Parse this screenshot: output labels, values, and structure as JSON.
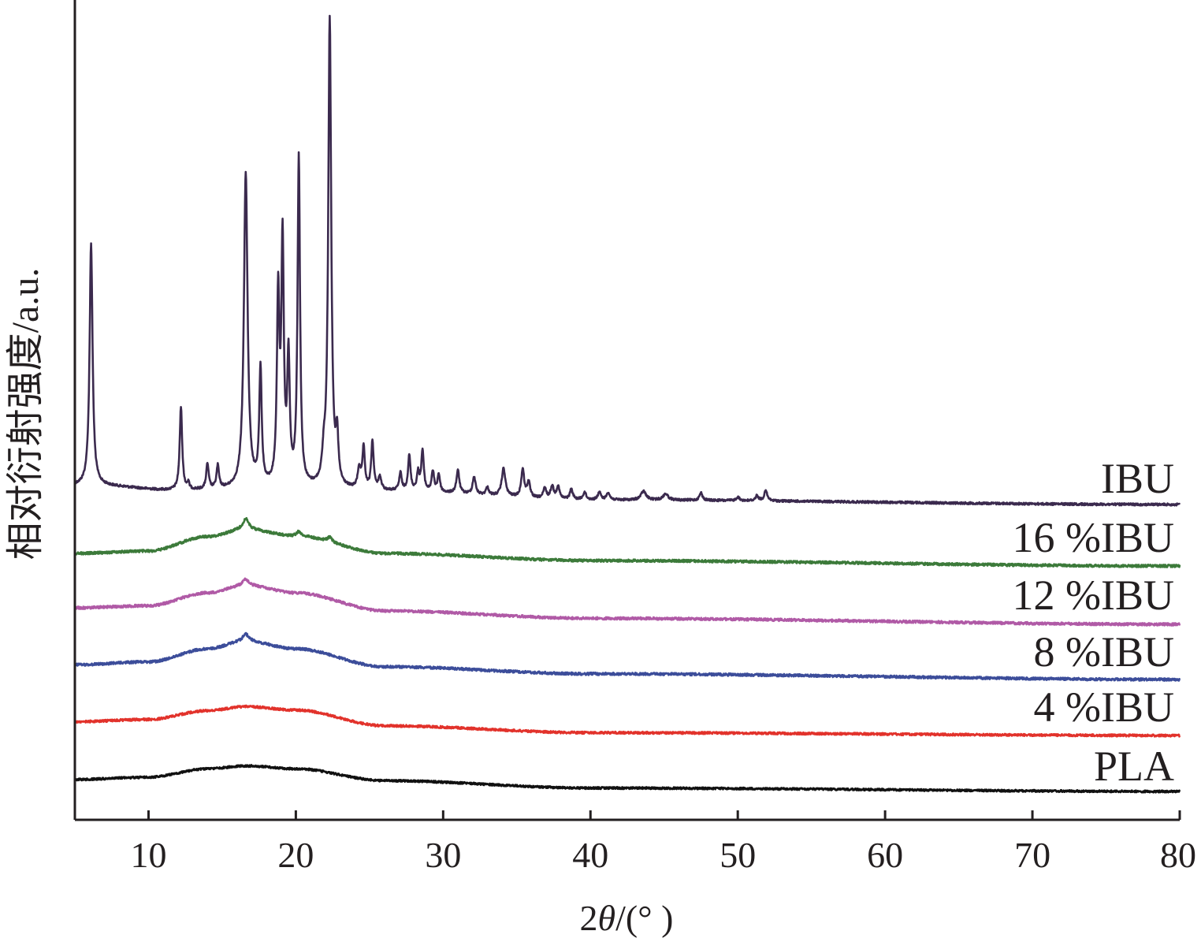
{
  "chart_data": {
    "type": "line",
    "title": "",
    "xlabel": "2θ/(° )",
    "xlabel_prefix": "2",
    "xlabel_theta": "θ",
    "xlabel_suffix": "/(° )",
    "ylabel": "相对衍射强度/a.u.",
    "xlim": [
      5,
      80
    ],
    "x_ticks": [
      10,
      20,
      30,
      40,
      50,
      60,
      70,
      80
    ],
    "y_ticks": "none",
    "grid": false,
    "legend": "labels at right end of each curve",
    "series": [
      {
        "name": "IBU",
        "color": "#3b2a4e",
        "baseline": [
          [
            5,
            0.75
          ],
          [
            6.2,
            0.75
          ],
          [
            12,
            0.55
          ],
          [
            20,
            0.62
          ],
          [
            26,
            0.52
          ],
          [
            40,
            0.18
          ],
          [
            80,
            0.0
          ]
        ],
        "peaks": [
          [
            6.1,
            9.6,
            0.12
          ],
          [
            12.2,
            3.3,
            0.1
          ],
          [
            12.7,
            0.25,
            0.08
          ],
          [
            14.0,
            1.0,
            0.1
          ],
          [
            14.7,
            0.9,
            0.1
          ],
          [
            16.6,
            12.5,
            0.15
          ],
          [
            17.6,
            4.6,
            0.1
          ],
          [
            18.8,
            7.4,
            0.1
          ],
          [
            19.1,
            9.5,
            0.1
          ],
          [
            19.5,
            4.9,
            0.1
          ],
          [
            20.2,
            13.0,
            0.1
          ],
          [
            21.9,
            0.9,
            0.12
          ],
          [
            22.3,
            18.6,
            0.12
          ],
          [
            22.8,
            1.8,
            0.1
          ],
          [
            24.3,
            0.8,
            0.12
          ],
          [
            24.6,
            1.6,
            0.1
          ],
          [
            25.2,
            1.9,
            0.1
          ],
          [
            25.7,
            0.5,
            0.12
          ],
          [
            27.1,
            0.7,
            0.1
          ],
          [
            27.7,
            1.4,
            0.1
          ],
          [
            28.3,
            0.7,
            0.1
          ],
          [
            28.6,
            1.6,
            0.1
          ],
          [
            29.3,
            0.8,
            0.1
          ],
          [
            29.7,
            0.7,
            0.1
          ],
          [
            31.0,
            0.9,
            0.12
          ],
          [
            32.1,
            0.7,
            0.12
          ],
          [
            33.0,
            0.3,
            0.12
          ],
          [
            34.1,
            1.1,
            0.15
          ],
          [
            35.4,
            1.1,
            0.12
          ],
          [
            35.8,
            0.6,
            0.12
          ],
          [
            36.9,
            0.4,
            0.12
          ],
          [
            37.4,
            0.5,
            0.12
          ],
          [
            37.8,
            0.5,
            0.12
          ],
          [
            38.7,
            0.4,
            0.12
          ],
          [
            39.6,
            0.3,
            0.12
          ],
          [
            40.6,
            0.3,
            0.12
          ],
          [
            41.2,
            0.3,
            0.12
          ],
          [
            43.6,
            0.35,
            0.2
          ],
          [
            45.1,
            0.25,
            0.2
          ],
          [
            47.5,
            0.3,
            0.12
          ],
          [
            50.0,
            0.15,
            0.12
          ],
          [
            51.3,
            0.2,
            0.12
          ],
          [
            51.9,
            0.4,
            0.12
          ]
        ]
      },
      {
        "name": "16 %IBU",
        "color": "#3c7a3a",
        "baseline": [
          [
            5,
            0.42
          ],
          [
            10,
            0.5
          ],
          [
            14,
            0.98
          ],
          [
            16.6,
            1.22
          ],
          [
            20,
            1.0
          ],
          [
            26,
            0.42
          ],
          [
            40,
            0.18
          ],
          [
            80,
            0.0
          ]
        ],
        "peaks": [
          [
            16.6,
            0.35,
            0.25
          ],
          [
            20.2,
            0.15,
            0.2
          ],
          [
            22.3,
            0.15,
            0.2
          ]
        ]
      },
      {
        "name": "12 %IBU",
        "color": "#b05aa6",
        "baseline": [
          [
            5,
            0.55
          ],
          [
            10,
            0.62
          ],
          [
            14,
            1.05
          ],
          [
            16.6,
            1.3
          ],
          [
            20,
            1.05
          ],
          [
            26,
            0.45
          ],
          [
            40,
            0.2
          ],
          [
            80,
            0.0
          ]
        ],
        "peaks": [
          [
            16.6,
            0.2,
            0.25
          ]
        ]
      },
      {
        "name": "8 %IBU",
        "color": "#3c4d9a",
        "baseline": [
          [
            5,
            0.52
          ],
          [
            10,
            0.62
          ],
          [
            14,
            1.08
          ],
          [
            16.6,
            1.35
          ],
          [
            20,
            1.08
          ],
          [
            26,
            0.45
          ],
          [
            40,
            0.2
          ],
          [
            80,
            0.0
          ]
        ],
        "peaks": [
          [
            16.6,
            0.25,
            0.25
          ]
        ]
      },
      {
        "name": "4 %IBU",
        "color": "#e2322b",
        "baseline": [
          [
            5,
            0.5
          ],
          [
            10,
            0.58
          ],
          [
            14,
            0.9
          ],
          [
            16.6,
            1.05
          ],
          [
            20,
            0.92
          ],
          [
            26,
            0.35
          ],
          [
            40,
            0.1
          ],
          [
            80,
            0.0
          ]
        ],
        "peaks": []
      },
      {
        "name": "PLA",
        "color": "#111111",
        "baseline": [
          [
            5,
            0.42
          ],
          [
            10,
            0.5
          ],
          [
            14,
            0.8
          ],
          [
            16.6,
            0.9
          ],
          [
            20,
            0.8
          ],
          [
            26,
            0.38
          ],
          [
            40,
            0.12
          ],
          [
            80,
            0.0
          ]
        ],
        "peaks": []
      }
    ]
  }
}
